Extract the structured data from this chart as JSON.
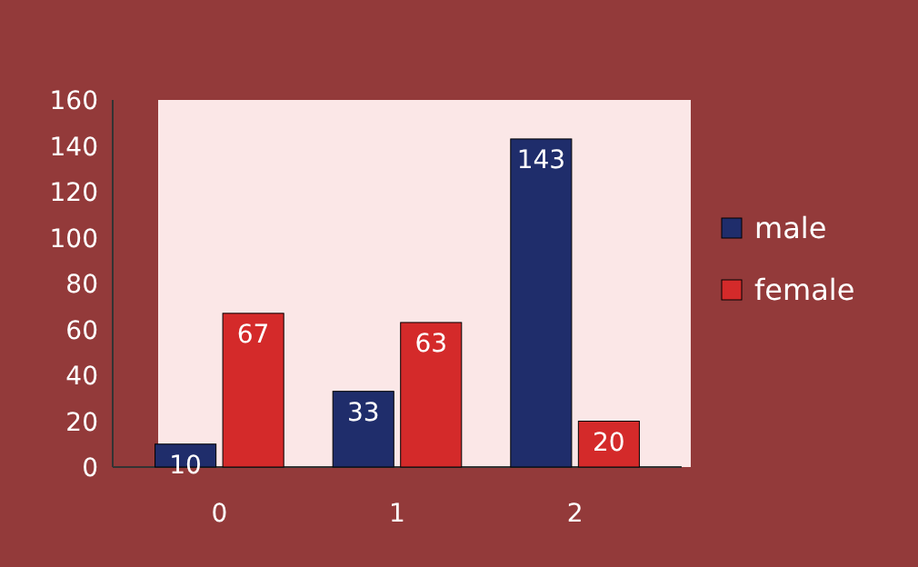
{
  "chart_data": {
    "type": "bar",
    "categories": [
      "0",
      "1",
      "2"
    ],
    "series": [
      {
        "name": "male",
        "color": "#1f2d6b",
        "values": [
          10,
          33,
          143
        ]
      },
      {
        "name": "female",
        "color": "#d42a2a",
        "values": [
          67,
          63,
          20
        ]
      }
    ],
    "ylim": [
      0,
      160
    ],
    "yticks": [
      0,
      20,
      40,
      60,
      80,
      100,
      120,
      140,
      160
    ],
    "grid": false,
    "legend": "right",
    "data_labels": true
  }
}
